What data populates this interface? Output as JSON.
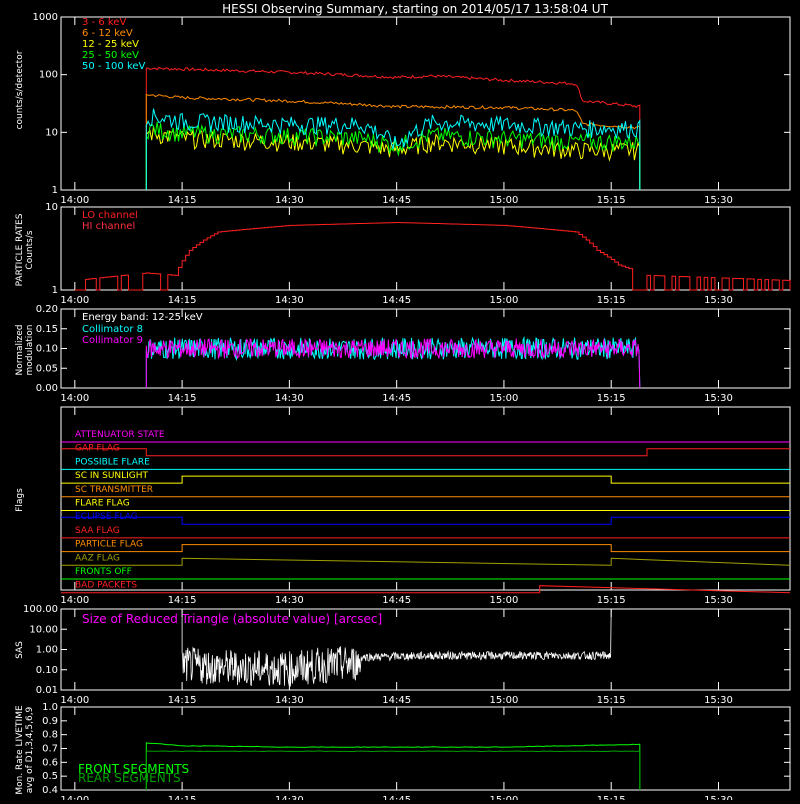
{
  "title": "HESSI Observing Summary, starting on 2014/05/17 13:58:04 UT",
  "time_ticks": [
    "14:00",
    "14:15",
    "14:30",
    "14:45",
    "15:00",
    "15:15",
    "15:30"
  ],
  "colors": {
    "red": "#ff2020",
    "orange": "#ff8c00",
    "yellow": "#ffff00",
    "green": "#00ff00",
    "cyan": "#00ffff",
    "magenta": "#ff00ff",
    "blue": "#0000ff",
    "white": "#ffffff",
    "olive": "#a0a000",
    "darkgreen": "#00a000",
    "darkred": "#c00000"
  },
  "chart_data": [
    {
      "type": "line",
      "ylabel": "counts/s/detector",
      "yscale": "log",
      "ylim": [
        1,
        1000
      ],
      "y_ticks": [
        "1",
        "10",
        "100",
        "1000"
      ],
      "x_range": [
        "13:58:04",
        "15:40"
      ],
      "series": [
        {
          "name": "3 - 6 keV",
          "color": "#ff2020",
          "x": [
            "14:10",
            "14:15",
            "14:30",
            "14:45",
            "14:50",
            "15:00",
            "15:10",
            "15:11",
            "15:19"
          ],
          "values": [
            130,
            125,
            110,
            90,
            95,
            80,
            70,
            35,
            28
          ]
        },
        {
          "name": "6 - 12 keV",
          "color": "#ff8c00",
          "x": [
            "14:10",
            "14:15",
            "14:30",
            "14:45",
            "15:00",
            "15:10",
            "15:11",
            "15:19"
          ],
          "values": [
            45,
            40,
            35,
            28,
            27,
            24,
            14,
            12
          ]
        },
        {
          "name": "12 - 25 keV",
          "color": "#ffff00",
          "x": [
            "14:10",
            "14:15",
            "14:30",
            "14:40",
            "14:45",
            "14:50",
            "15:00",
            "15:10",
            "15:19"
          ],
          "values": [
            10,
            8,
            7,
            6,
            5,
            7,
            6,
            5,
            5
          ]
        },
        {
          "name": "25 - 50 keV",
          "color": "#00ff00",
          "x": [
            "14:10",
            "14:15",
            "14:30",
            "14:40",
            "14:45",
            "14:50",
            "15:00",
            "15:10",
            "15:19"
          ],
          "values": [
            12,
            10,
            9,
            8,
            6,
            9,
            8,
            7,
            7
          ]
        },
        {
          "name": "50 - 100 keV",
          "color": "#00ffff",
          "x": [
            "14:10",
            "14:15",
            "14:30",
            "14:40",
            "14:45",
            "14:50",
            "15:00",
            "15:10",
            "15:19"
          ],
          "values": [
            20,
            16,
            14,
            14,
            6,
            15,
            14,
            12,
            12
          ]
        }
      ]
    },
    {
      "type": "line",
      "ylabel": "PARTICLE RATES",
      "ylabel2": "Counts/s",
      "yscale": "log",
      "ylim": [
        1,
        10
      ],
      "y_ticks": [
        "1",
        "10"
      ],
      "series": [
        {
          "name": "LO channel",
          "color": "#ff2020",
          "x": [
            "14:00",
            "14:10",
            "14:14",
            "14:16",
            "14:20",
            "14:30",
            "14:45",
            "15:00",
            "15:10",
            "15:13",
            "15:16",
            "15:20",
            "15:40"
          ],
          "values": [
            1.3,
            1.6,
            1.5,
            3,
            5,
            6,
            6.5,
            6,
            5,
            3,
            2,
            1.5,
            1.3
          ]
        },
        {
          "name": "HI channel",
          "color": "#ff3040",
          "x": [],
          "values": []
        }
      ]
    },
    {
      "type": "line",
      "ylabel": "Normalized",
      "ylabel2": "modulation",
      "ylim": [
        0,
        0.2
      ],
      "y_ticks": [
        "0.00",
        "0.05",
        "0.10",
        "0.15",
        "0.20"
      ],
      "annotation": "Energy band: 12-25 keV",
      "series": [
        {
          "name": "Collimator 8",
          "color": "#00ffff",
          "x": [
            "14:10",
            "15:19"
          ],
          "values": [
            0.1,
            0.1
          ]
        },
        {
          "name": "Collimator 9",
          "color": "#ff00ff",
          "x": [
            "14:10",
            "15:19"
          ],
          "values": [
            0.1,
            0.1
          ]
        }
      ]
    },
    {
      "type": "line",
      "ylabel": "Flags",
      "series": [
        {
          "name": "ATTENUATOR STATE",
          "color": "#ff00ff",
          "x": [
            "13:58:04",
            "15:40"
          ],
          "values": [
            0,
            0
          ]
        },
        {
          "name": "GAP FLAG",
          "color": "#ff2020",
          "x": [
            "13:58:04",
            "14:10",
            "14:10",
            "15:20",
            "15:20",
            "15:40"
          ],
          "values": [
            1,
            1,
            0,
            0,
            1,
            1
          ]
        },
        {
          "name": "POSSIBLE FLARE",
          "color": "#00ffff",
          "x": [
            "13:58:04",
            "15:40"
          ],
          "values": [
            0,
            0
          ]
        },
        {
          "name": "SC IN SUNLIGHT",
          "color": "#ffff00",
          "x": [
            "13:58:04",
            "14:15",
            "14:15",
            "15:15",
            "15:15",
            "15:40"
          ],
          "values": [
            0,
            0,
            1,
            1,
            0,
            0
          ]
        },
        {
          "name": "SC TRANSMITTER",
          "color": "#ff8c00",
          "x": [
            "13:58:04",
            "15:40"
          ],
          "values": [
            0,
            0
          ]
        },
        {
          "name": "FLARE FLAG",
          "color": "#ffff00",
          "x": [
            "13:58:04",
            "15:40"
          ],
          "values": [
            0,
            0
          ]
        },
        {
          "name": "ECLIPSE FLAG",
          "color": "#0000ff",
          "x": [
            "13:58:04",
            "14:15",
            "14:15",
            "15:15",
            "15:15",
            "15:40"
          ],
          "values": [
            1,
            1,
            0,
            0,
            1,
            1
          ]
        },
        {
          "name": "SAA FLAG",
          "color": "#ff2020",
          "x": [
            "13:58:04",
            "15:40"
          ],
          "values": [
            0,
            0
          ]
        },
        {
          "name": "PARTICLE FLAG",
          "color": "#ff8c00",
          "x": [
            "13:58:04",
            "14:15",
            "14:15",
            "15:15",
            "15:15",
            "15:40"
          ],
          "values": [
            0,
            0,
            1,
            1,
            0,
            0
          ]
        },
        {
          "name": "AAZ FLAG",
          "color": "#a0a000",
          "x": [
            "13:58:04",
            "14:15",
            "14:15",
            "15:15",
            "15:15",
            "15:40"
          ],
          "values": [
            0,
            0,
            1,
            0,
            1,
            0
          ]
        },
        {
          "name": "FRONTS OFF",
          "color": "#00ff00",
          "x": [
            "13:58:04",
            "15:40"
          ],
          "values": [
            0,
            0
          ]
        },
        {
          "name": "BAD PACKETS",
          "color": "#ff2020",
          "x": [
            "13:58:04",
            "15:05",
            "15:05",
            "15:40"
          ],
          "values": [
            0,
            0,
            1,
            0
          ]
        }
      ]
    },
    {
      "type": "line",
      "ylabel": "SAS",
      "yscale": "log",
      "ylim": [
        0.01,
        100
      ],
      "y_ticks": [
        "0.01",
        "0.10",
        "1.00",
        "10.00",
        "100.00"
      ],
      "annotation": "Size of Reduced Triangle (absolute value) [arcsec]",
      "series": [
        {
          "name": "",
          "color": "#ffffff",
          "x": [
            "14:15",
            "14:20",
            "14:30",
            "14:40",
            "14:50",
            "15:00",
            "15:10",
            "15:15"
          ],
          "values": [
            0.4,
            0.3,
            0.25,
            0.5,
            0.6,
            0.6,
            0.6,
            0.6
          ]
        }
      ]
    },
    {
      "type": "line",
      "ylabel": "Mon. Rate LIVETIME",
      "ylabel2": "avg of D1,3,4,5,6,9",
      "ylim": [
        0.4,
        1.0
      ],
      "y_ticks": [
        "0.4",
        "0.5",
        "0.6",
        "0.7",
        "0.8",
        "0.9",
        "1.0"
      ],
      "series": [
        {
          "name": "FRONT SEGMENTS",
          "color": "#00ff00",
          "x": [
            "14:10",
            "14:15",
            "14:30",
            "15:00",
            "15:19"
          ],
          "values": [
            0.74,
            0.72,
            0.71,
            0.71,
            0.73
          ]
        },
        {
          "name": "REAR SEGMENTS",
          "color": "#00a000",
          "x": [
            "14:10",
            "15:19"
          ],
          "values": [
            0.68,
            0.68
          ]
        }
      ]
    }
  ]
}
